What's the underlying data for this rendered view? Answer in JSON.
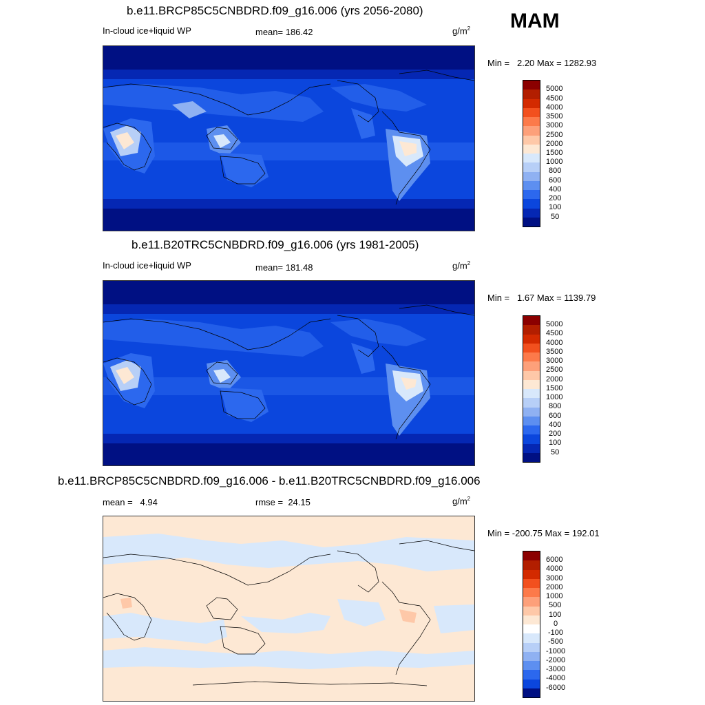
{
  "season": "MAM",
  "panels": [
    {
      "title": "b.e11.BRCP85C5CNBDRD.f09_g16.006 (yrs 2056-2080)",
      "variable": "In-cloud ice+liquid WP",
      "mean": "mean= 186.42",
      "units": "g/m",
      "units_sup": "2",
      "minmax": "Min =   2.20 Max = 1282.93",
      "colorbar_labels": [
        "5000",
        "4500",
        "4000",
        "3500",
        "3000",
        "2500",
        "2000",
        "1500",
        "1000",
        "800",
        "600",
        "400",
        "200",
        "100",
        "50"
      ],
      "colorbar_colors": [
        "#8b0000",
        "#b21e00",
        "#d32a00",
        "#f2501e",
        "#fc7a4a",
        "#fda07a",
        "#fec8a8",
        "#fde8d4",
        "#d8e8fb",
        "#b7cff7",
        "#8fb1f2",
        "#5d8ff0",
        "#2c68ee",
        "#0b46dd",
        "#0527b3",
        "#001083"
      ]
    },
    {
      "title": "b.e11.B20TRC5CNBDRD.f09_g16.006 (yrs 1981-2005)",
      "variable": "In-cloud ice+liquid WP",
      "mean": "mean= 181.48",
      "units": "g/m",
      "units_sup": "2",
      "minmax": "Min =   1.67 Max = 1139.79",
      "colorbar_labels": [
        "5000",
        "4500",
        "4000",
        "3500",
        "3000",
        "2500",
        "2000",
        "1500",
        "1000",
        "800",
        "600",
        "400",
        "200",
        "100",
        "50"
      ],
      "colorbar_colors": [
        "#8b0000",
        "#b21e00",
        "#d32a00",
        "#f2501e",
        "#fc7a4a",
        "#fda07a",
        "#fec8a8",
        "#fde8d4",
        "#d8e8fb",
        "#b7cff7",
        "#8fb1f2",
        "#5d8ff0",
        "#2c68ee",
        "#0b46dd",
        "#0527b3",
        "#001083"
      ]
    },
    {
      "title": "b.e11.BRCP85C5CNBDRD.f09_g16.006 - b.e11.B20TRC5CNBDRD.f09_g16.006",
      "mean": "mean =   4.94",
      "rmse": "rmse =  24.15",
      "units": "g/m",
      "units_sup": "2",
      "minmax": "Min = -200.75 Max = 192.01",
      "colorbar_labels": [
        "6000",
        "4000",
        "3000",
        "2000",
        "1000",
        "500",
        "100",
        "0",
        "-100",
        "-500",
        "-1000",
        "-2000",
        "-3000",
        "-4000",
        "-6000"
      ],
      "colorbar_colors": [
        "#8b0000",
        "#b21e00",
        "#d32a00",
        "#f2501e",
        "#fc7a4a",
        "#fda07a",
        "#fec8a8",
        "#fde8d4",
        "#ffffff",
        "#d8e8fb",
        "#b7cff7",
        "#8fb1f2",
        "#5d8ff0",
        "#2c68ee",
        "#0b46dd",
        "#001083"
      ]
    }
  ]
}
